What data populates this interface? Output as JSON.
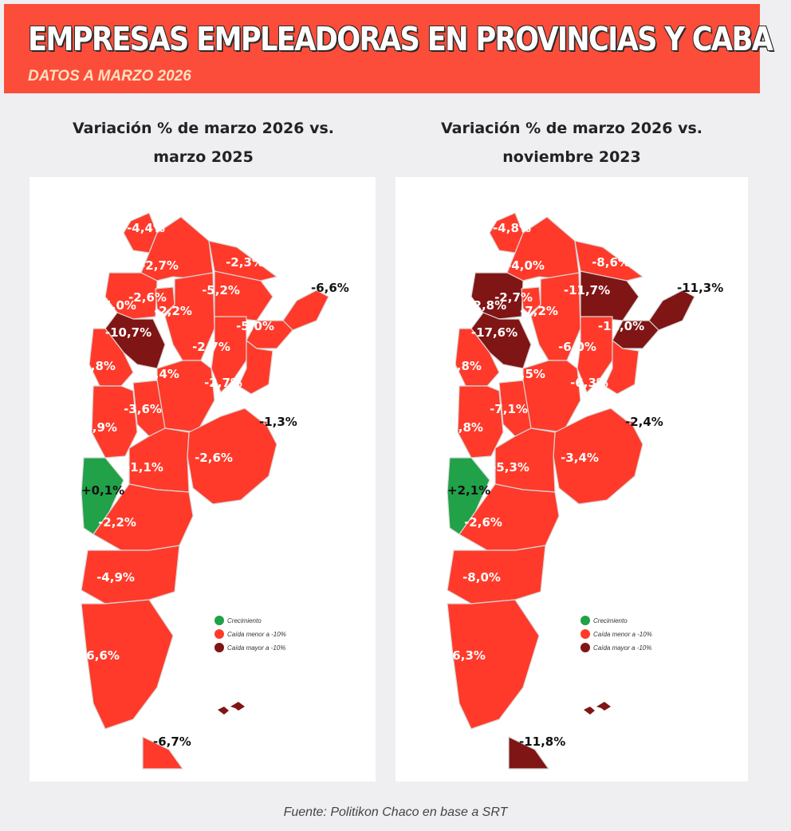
{
  "header": {
    "title": "EMPRESAS EMPLEADORAS EN PROVINCIAS Y CABA",
    "subtitle": "DATOS A MARZO 2026"
  },
  "colors": {
    "header_bg": "#fb4d3a",
    "growth": "#21a148",
    "drop_less_10": "#ff3a2a",
    "drop_more_10": "#801515"
  },
  "legend": {
    "growth": "Crecimiento",
    "drop_less": "Caída menor a -10%",
    "drop_more": "Caída mayor a -10%"
  },
  "panels": [
    {
      "title_line1": "Variación % de marzo 2026 vs.",
      "title_line2": "marzo 2025",
      "regions": [
        {
          "label": "-4,4%",
          "category": "drop_less"
        },
        {
          "label": "-2,7%",
          "category": "drop_less"
        },
        {
          "label": "-2,3%",
          "category": "drop_less"
        },
        {
          "label": "-6,6%",
          "category": "drop_less"
        },
        {
          "label": "-5,0%",
          "category": "drop_less"
        },
        {
          "label": "-2,6%",
          "category": "drop_less"
        },
        {
          "label": "-2,2%",
          "category": "drop_less"
        },
        {
          "label": "-5,2%",
          "category": "drop_less"
        },
        {
          "label": "-10,7%",
          "category": "drop_more"
        },
        {
          "label": "-5,0%",
          "category": "drop_less"
        },
        {
          "label": "-2,7%",
          "category": "drop_less"
        },
        {
          "label": "-1,8%",
          "category": "drop_less"
        },
        {
          "label": "-4,4%",
          "category": "drop_less"
        },
        {
          "label": "-2,7%",
          "category": "drop_less"
        },
        {
          "label": "-3,6%",
          "category": "drop_less"
        },
        {
          "label": "-1,3%",
          "category": "drop_less"
        },
        {
          "label": "-2,9%",
          "category": "drop_less"
        },
        {
          "label": "-2,6%",
          "category": "drop_less"
        },
        {
          "label": "-1,1%",
          "category": "drop_less"
        },
        {
          "label": "+0,1%",
          "category": "growth"
        },
        {
          "label": "-2,2%",
          "category": "drop_less"
        },
        {
          "label": "-4,9%",
          "category": "drop_less"
        },
        {
          "label": "-6,6%",
          "category": "drop_less"
        },
        {
          "label": "-6,7%",
          "category": "drop_less"
        }
      ]
    },
    {
      "title_line1": "Variación % de marzo 2026 vs.",
      "title_line2": "noviembre 2023",
      "regions": [
        {
          "label": "-4,8%",
          "category": "drop_less"
        },
        {
          "label": "-4,0%",
          "category": "drop_less"
        },
        {
          "label": "-8,6%",
          "category": "drop_less"
        },
        {
          "label": "-11,3%",
          "category": "drop_more"
        },
        {
          "label": "-12,8%",
          "category": "drop_more"
        },
        {
          "label": "-2,7%",
          "category": "drop_less"
        },
        {
          "label": "-7,2%",
          "category": "drop_less"
        },
        {
          "label": "-11,7%",
          "category": "drop_more"
        },
        {
          "label": "-17,6%",
          "category": "drop_more"
        },
        {
          "label": "-11,0%",
          "category": "drop_more"
        },
        {
          "label": "-6,0%",
          "category": "drop_less"
        },
        {
          "label": "-2,8%",
          "category": "drop_less"
        },
        {
          "label": "-8,5%",
          "category": "drop_less"
        },
        {
          "label": "-6,3%",
          "category": "drop_less"
        },
        {
          "label": "-7,1%",
          "category": "drop_less"
        },
        {
          "label": "-2,4%",
          "category": "drop_less"
        },
        {
          "label": "-5,8%",
          "category": "drop_less"
        },
        {
          "label": "-3,4%",
          "category": "drop_less"
        },
        {
          "label": "-5,3%",
          "category": "drop_less"
        },
        {
          "label": "+2,1%",
          "category": "growth"
        },
        {
          "label": "-2,6%",
          "category": "drop_less"
        },
        {
          "label": "-8,0%",
          "category": "drop_less"
        },
        {
          "label": "-6,3%",
          "category": "drop_less"
        },
        {
          "label": "-11,8%",
          "category": "drop_more"
        }
      ]
    }
  ],
  "source": "Fuente: Politikon Chaco en base a SRT"
}
